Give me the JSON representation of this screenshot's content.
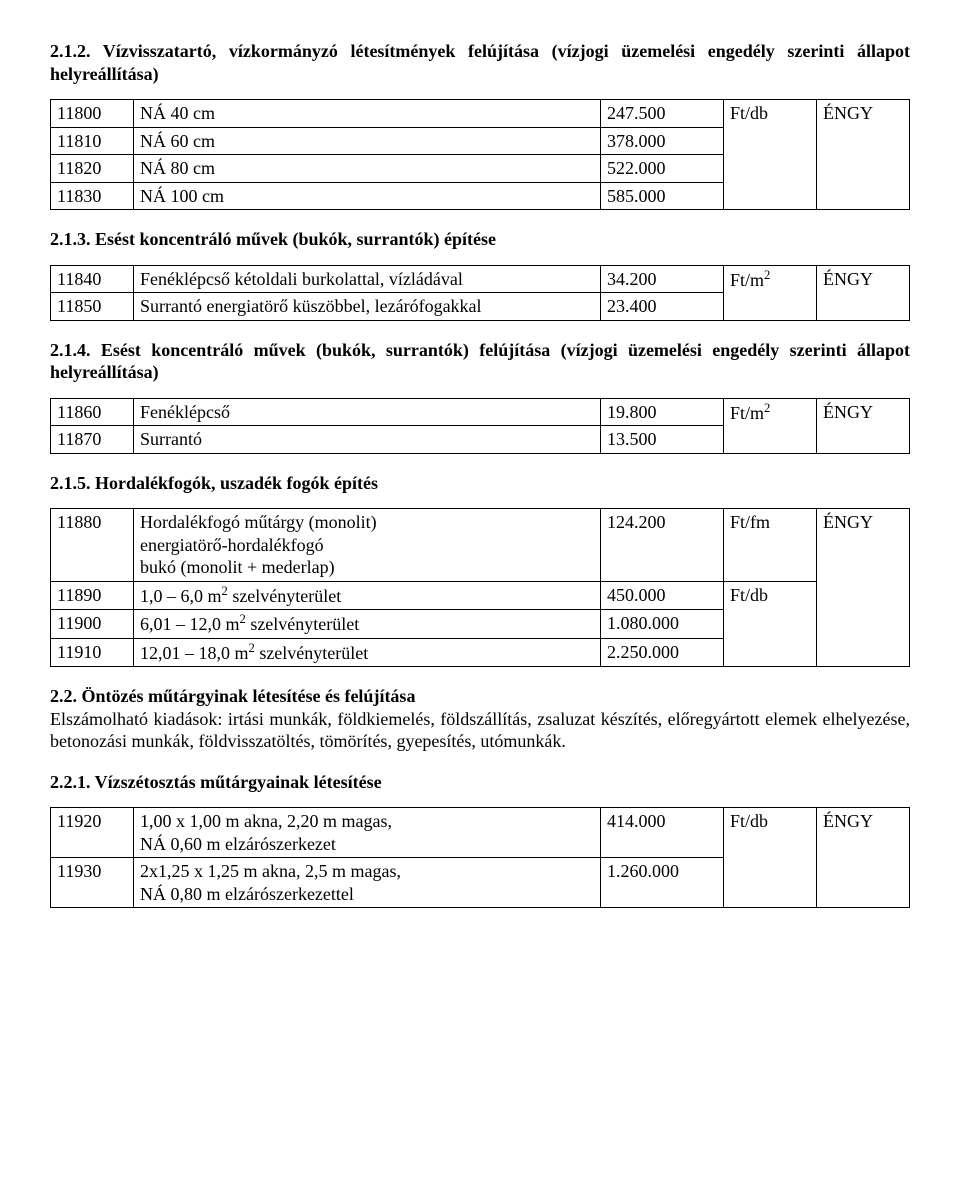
{
  "s212": {
    "title": "2.1.2. Vízvisszatartó, vízkormányzó létesítmények felújítása (vízjogi üzemelési engedély szerinti állapot helyreállítása)",
    "rows": [
      {
        "code": "11800",
        "desc": "NÁ 40 cm",
        "val": "247.500",
        "unit": "Ft/db",
        "src": "ÉNGY"
      },
      {
        "code": "11810",
        "desc": "NÁ 60 cm",
        "val": "378.000",
        "unit": "",
        "src": ""
      },
      {
        "code": "11820",
        "desc": "NÁ 80 cm",
        "val": "522.000",
        "unit": "",
        "src": ""
      },
      {
        "code": "11830",
        "desc": "NÁ 100 cm",
        "val": "585.000",
        "unit": "",
        "src": ""
      }
    ]
  },
  "s213": {
    "title": "2.1.3. Esést koncentráló művek (bukók, surrantók) építése",
    "rows": [
      {
        "code": "11840",
        "desc": "Fenéklépcső kétoldali burkolattal, vízládával",
        "val": "34.200",
        "unit": "Ft/m²",
        "src": "ÉNGY"
      },
      {
        "code": "11850",
        "desc": "Surrantó energiatörő küszöbbel, lezárófogakkal",
        "val": "23.400",
        "unit": "",
        "src": ""
      }
    ]
  },
  "s214": {
    "title": "2.1.4. Esést koncentráló művek (bukók, surrantók) felújítása (vízjogi üzemelési engedély szerinti állapot helyreállítása)",
    "rows": [
      {
        "code": "11860",
        "desc": "Fenéklépcső",
        "val": "19.800",
        "unit": "Ft/m²",
        "src": "ÉNGY"
      },
      {
        "code": "11870",
        "desc": "Surrantó",
        "val": "13.500",
        "unit": "",
        "src": ""
      }
    ]
  },
  "s215": {
    "title": "2.1.5. Hordalékfogók, uszadék fogók építés",
    "rows": [
      {
        "code": "11880",
        "desc": "Hordalékfogó műtárgy (monolit) energiatörő-hordalékfogó bukó (monolit + mederlap)",
        "val": "124.200",
        "unit": "Ft/fm",
        "src": "ÉNGY"
      },
      {
        "code": "11890",
        "desc": "1,0 – 6,0 m² szelvényterület",
        "val": "450.000",
        "unit": "Ft/db",
        "src": ""
      },
      {
        "code": "11900",
        "desc": "6,01 – 12,0 m² szelvényterület",
        "val": "1.080.000",
        "unit": "",
        "src": ""
      },
      {
        "code": "11910",
        "desc": "12,01 – 18,0 m² szelvényterület",
        "val": "2.250.000",
        "unit": "",
        "src": ""
      }
    ]
  },
  "s22": {
    "title": "2.2. Öntözés műtárgyinak létesítése és felújítása",
    "body": "Elszámolható kiadások: irtási munkák, földkiemelés, földszállítás, zsaluzat készítés, előregyártott elemek elhelyezése, betonozási munkák, földvisszatöltés, tömörítés, gyepesítés, utómunkák."
  },
  "s221": {
    "title": "2.2.1. Vízszétosztás műtárgyainak létesítése",
    "rows": [
      {
        "code": "11920",
        "desc": "1,00 x 1,00 m akna, 2,20 m magas, NÁ 0,60 m elzárószerkezet",
        "val": "414.000",
        "unit": "Ft/db",
        "src": "ÉNGY"
      },
      {
        "code": "11930",
        "desc": "2x1,25 x 1,25 m akna, 2,5 m magas, NÁ 0,80 m elzárószerkezettel",
        "val": "1.260.000",
        "unit": "",
        "src": ""
      }
    ]
  }
}
